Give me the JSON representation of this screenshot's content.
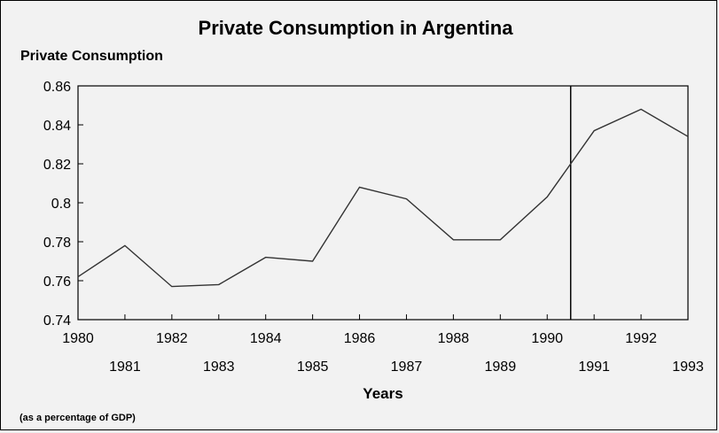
{
  "chart_data": {
    "type": "line",
    "title": "Private Consumption in Argentina",
    "ylabel": "Private Consumption",
    "xlabel": "Years",
    "note": "(as a percentage of GDP)",
    "x": [
      1980,
      1981,
      1982,
      1983,
      1984,
      1985,
      1986,
      1987,
      1988,
      1989,
      1990,
      1991,
      1992,
      1993
    ],
    "series": [
      {
        "values": [
          0.762,
          0.778,
          0.757,
          0.758,
          0.772,
          0.77,
          0.808,
          0.802,
          0.781,
          0.781,
          0.803,
          0.837,
          0.848,
          0.834
        ]
      }
    ],
    "xlim": [
      1980,
      1993
    ],
    "ylim": [
      0.74,
      0.86
    ],
    "yticks": [
      "0.74",
      "0.76",
      "0.78",
      "0.8",
      "0.82",
      "0.84",
      "0.86"
    ],
    "xticks_upper": [
      "1980",
      "1982",
      "1984",
      "1986",
      "1988",
      "1990",
      "1992"
    ],
    "xticks_lower": [
      "1981",
      "1983",
      "1985",
      "1987",
      "1989",
      "1991",
      "1993"
    ],
    "vertical_line_x": 1990.5,
    "grid": false,
    "line_color": "#333333"
  }
}
